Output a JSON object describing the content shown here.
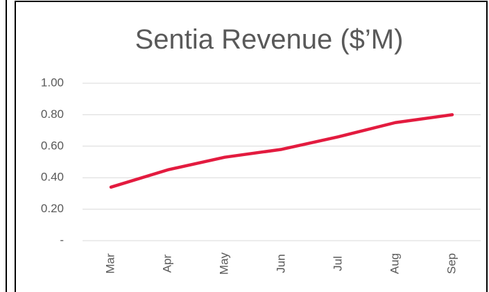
{
  "chart_data": {
    "type": "line",
    "title": "Sentia Revenue ($’M)",
    "categories": [
      "Mar",
      "Apr",
      "May",
      "Jun",
      "Jul",
      "Aug",
      "Sep"
    ],
    "series": [
      {
        "name": "Revenue",
        "color": "#e31b3f",
        "values": [
          0.34,
          0.45,
          0.53,
          0.58,
          0.66,
          0.75,
          0.8
        ]
      }
    ],
    "ylim": [
      0,
      1
    ],
    "yticks": [
      {
        "value": 0,
        "label": "-"
      },
      {
        "value": 0.2,
        "label": "0.20"
      },
      {
        "value": 0.4,
        "label": "0.40"
      },
      {
        "value": 0.6,
        "label": "0.60"
      },
      {
        "value": 0.8,
        "label": "0.80"
      },
      {
        "value": 1,
        "label": "1.00"
      }
    ],
    "grid": true
  }
}
